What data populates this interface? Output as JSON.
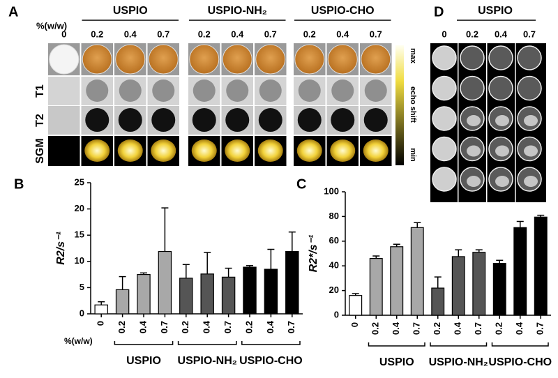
{
  "panel_a": {
    "label": "A",
    "unit": "%(w/w)",
    "groups": [
      {
        "name": "USPIO",
        "columns": [
          "0",
          "0.2",
          "0.4",
          "0.7"
        ]
      },
      {
        "name": "USPIO-NH₂",
        "columns": [
          "0.2",
          "0.4",
          "0.7"
        ]
      },
      {
        "name": "USPIO-CHO",
        "columns": [
          "0.2",
          "0.4",
          "0.7"
        ]
      }
    ],
    "rows": [
      "T1",
      "T2",
      "SGM"
    ],
    "colorbar": [
      "max",
      "echo shift",
      "min"
    ]
  },
  "panel_d": {
    "label": "D",
    "title": "USPIO",
    "columns": [
      "0",
      "0.2",
      "0.4",
      "0.7"
    ]
  },
  "chart_data": [
    {
      "type": "bar",
      "panel": "B",
      "y_label": "R2/s⁻¹",
      "x_label": "%(w/w)",
      "categories": [
        "0",
        "0.2",
        "0.4",
        "0.7",
        "0.2",
        "0.4",
        "0.7",
        "0.2",
        "0.4",
        "0.7"
      ],
      "values": [
        1.7,
        4.6,
        7.5,
        11.9,
        6.8,
        7.6,
        7.0,
        8.9,
        8.5,
        11.9
      ],
      "errors": [
        0.6,
        2.5,
        0.3,
        8.3,
        2.6,
        4.1,
        1.7,
        0.3,
        3.8,
        3.7
      ],
      "colors": [
        "#ffffff",
        "#a8a8a8",
        "#a8a8a8",
        "#a8a8a8",
        "#555555",
        "#555555",
        "#555555",
        "#000000",
        "#000000",
        "#000000"
      ],
      "group_labels": [
        "USPIO",
        "USPIO-NH₂",
        "USPIO-CHO"
      ],
      "ylim": [
        0,
        25
      ],
      "yticks": [
        0,
        5,
        10,
        15,
        20,
        25
      ]
    },
    {
      "type": "bar",
      "panel": "C",
      "y_label": "R2*/s⁻¹",
      "categories": [
        "0",
        "0.2",
        "0.4",
        "0.7",
        "0.2",
        "0.4",
        "0.7",
        "0.2",
        "0.4",
        "0.7"
      ],
      "values": [
        16,
        46,
        55.5,
        71,
        22,
        47.5,
        51,
        42,
        71,
        79.5
      ],
      "errors": [
        1.5,
        2,
        2,
        4,
        9,
        5.5,
        2,
        2.5,
        5,
        1.5
      ],
      "colors": [
        "#ffffff",
        "#a8a8a8",
        "#a8a8a8",
        "#a8a8a8",
        "#555555",
        "#555555",
        "#555555",
        "#000000",
        "#000000",
        "#000000"
      ],
      "group_labels": [
        "USPIO",
        "USPIO-NH₂",
        "USPIO-CHO"
      ],
      "ylim": [
        0,
        100
      ],
      "yticks": [
        0,
        20,
        40,
        60,
        80,
        100
      ]
    }
  ]
}
